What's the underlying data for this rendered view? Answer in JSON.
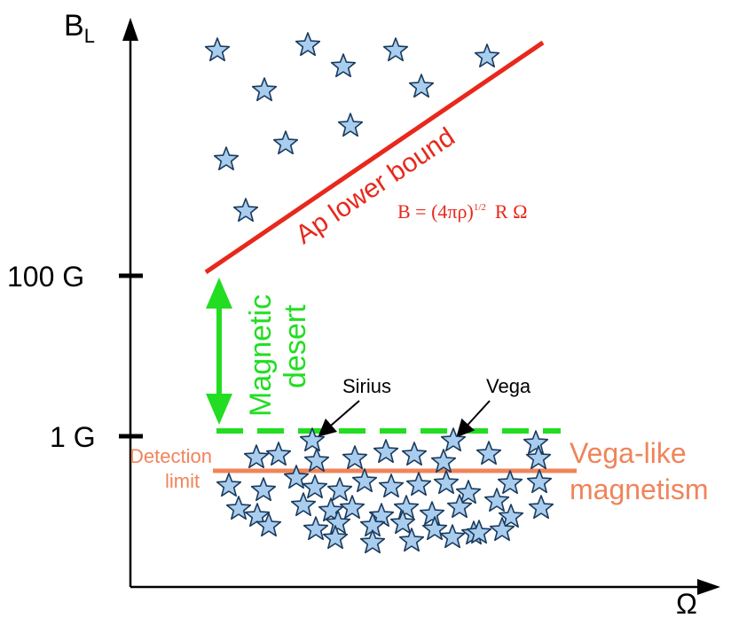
{
  "axes": {
    "y_label": "B",
    "y_label_sub": "L",
    "x_label": "Ω",
    "tick_100g": "100  G",
    "tick_1g": "1  G"
  },
  "annotations": {
    "ap_lower_bound": "Ap lower bound",
    "formula_main": "B = (4πρ)",
    "formula_exp": "1/2",
    "formula_tail": "R Ω",
    "magnetic_desert_line1": "Magnetic",
    "magnetic_desert_line2": "desert",
    "detection_limit_line1": "Detection",
    "detection_limit_line2": "limit",
    "vega_like_line1": "Vega-like",
    "vega_like_line2": "magnetism",
    "sirius": "Sirius",
    "vega": "Vega"
  },
  "colors": {
    "axis": "#000000",
    "ap_line": "#e8281c",
    "desert": "#22dd22",
    "detection": "#f0845a",
    "star_fill": "#a9cdee",
    "star_stroke": "#1a3a5c"
  }
}
